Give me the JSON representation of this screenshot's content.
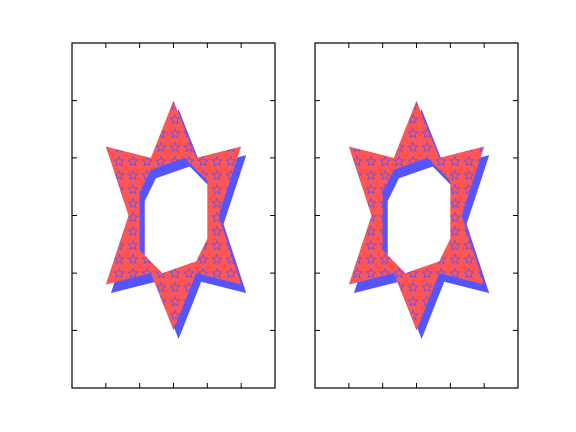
{
  "figure": {
    "background": "#ffffff",
    "axes_color": "#000000"
  },
  "chart_data": [
    {
      "type": "filled-polygon",
      "title": "",
      "xlabel": "",
      "ylabel": "",
      "xticklabels": [],
      "yticklabels": [],
      "xlim": [
        -3,
        3
      ],
      "ylim": [
        -5,
        5
      ],
      "xticks": [
        -2,
        -1,
        0,
        1,
        2
      ],
      "yticks": [
        -3.33,
        -1.67,
        0,
        1.67,
        3.33
      ],
      "grid": false,
      "outer_star": [
        [
          0,
          3.33
        ],
        [
          0.67,
          1.67
        ],
        [
          2,
          2
        ],
        [
          1.33,
          0
        ],
        [
          2,
          -2
        ],
        [
          0.67,
          -1.67
        ],
        [
          0,
          -3.33
        ],
        [
          -0.67,
          -1.67
        ],
        [
          -2,
          -2
        ],
        [
          -1.33,
          0
        ],
        [
          -2,
          2
        ],
        [
          -0.67,
          1.67
        ]
      ],
      "inner_hole": [
        [
          -1,
          0.67
        ],
        [
          -0.67,
          1.33
        ],
        [
          0.33,
          1.67
        ],
        [
          1,
          1
        ],
        [
          1,
          -0.67
        ],
        [
          0.67,
          -1.33
        ],
        [
          -0.33,
          -1.67
        ],
        [
          -1,
          -1
        ]
      ],
      "fill_color": "#ff5555",
      "edge_color": "#5555ff",
      "hatch": "stars",
      "edge_offset": {
        "dx": 0.15,
        "dy": -0.25
      }
    },
    {
      "type": "filled-polygon",
      "title": "",
      "xlabel": "",
      "ylabel": "",
      "xticklabels": [],
      "yticklabels": [],
      "xlim": [
        -3,
        3
      ],
      "ylim": [
        -5,
        5
      ],
      "xticks": [
        -2,
        -1,
        0,
        1,
        2
      ],
      "yticks": [
        -3.33,
        -1.67,
        0,
        1.67,
        3.33
      ],
      "grid": false,
      "outer_star": [
        [
          0,
          3.33
        ],
        [
          0.67,
          1.67
        ],
        [
          2,
          2
        ],
        [
          1.33,
          0
        ],
        [
          2,
          -2
        ],
        [
          0.67,
          -1.67
        ],
        [
          0,
          -3.33
        ],
        [
          -0.67,
          -1.67
        ],
        [
          -2,
          -2
        ],
        [
          -1.33,
          0
        ],
        [
          -2,
          2
        ],
        [
          -0.67,
          1.67
        ]
      ],
      "inner_hole": [
        [
          -1,
          0.67
        ],
        [
          -0.67,
          1.33
        ],
        [
          0.33,
          1.67
        ],
        [
          1,
          1
        ],
        [
          1,
          -0.67
        ],
        [
          0.67,
          -1.33
        ],
        [
          -0.33,
          -1.67
        ],
        [
          -1,
          -1
        ]
      ],
      "fill_color": "#ff5555",
      "edge_color": "#5555ff",
      "hatch": "stars",
      "edge_offset": {
        "dx": 0.15,
        "dy": -0.25
      }
    }
  ]
}
